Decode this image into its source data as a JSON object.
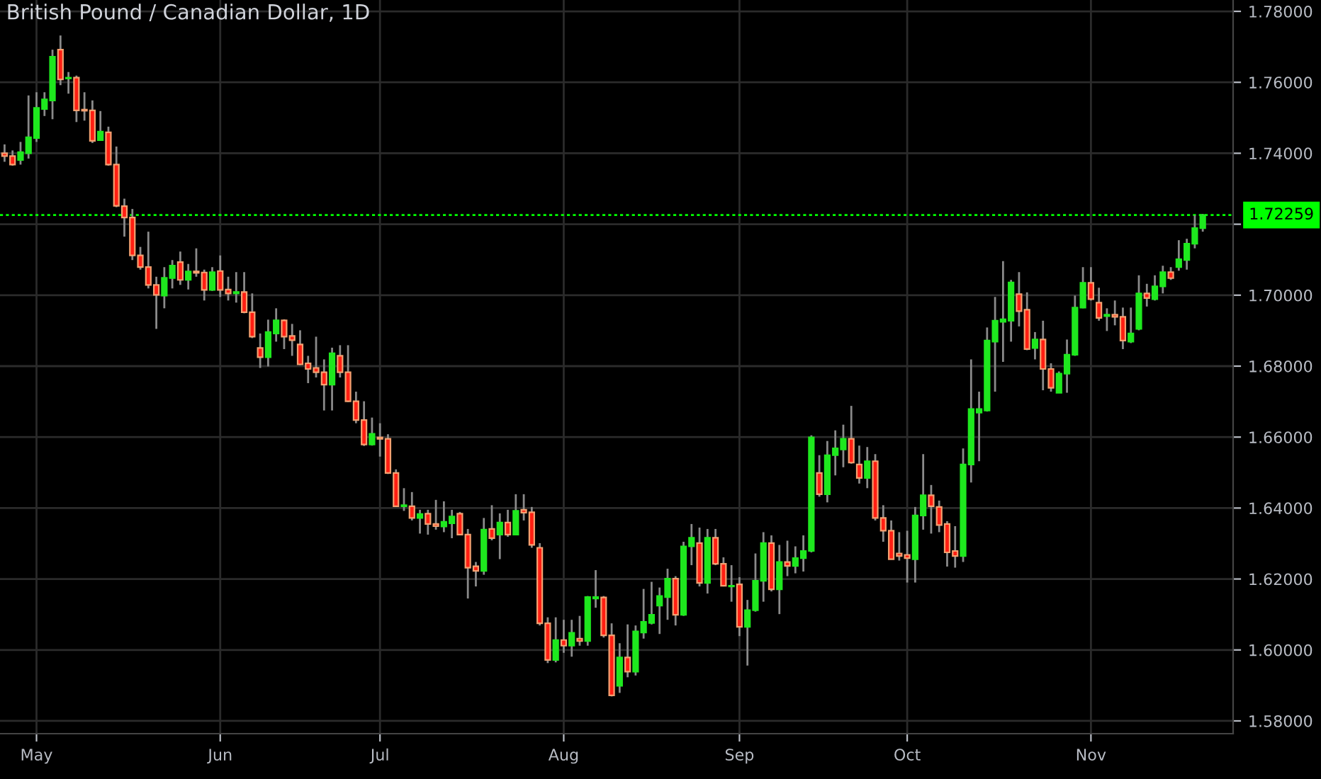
{
  "chart_data": {
    "type": "candlestick",
    "title": "British Pound / Canadian Dollar, 1D",
    "categories": [
      null,
      null,
      null,
      null,
      "May",
      null,
      null,
      null,
      null,
      null,
      null,
      null,
      null,
      null,
      null,
      null,
      null,
      null,
      null,
      null,
      null,
      null,
      null,
      null,
      null,
      null,
      null,
      "Jun",
      null,
      null,
      null,
      null,
      null,
      null,
      null,
      null,
      null,
      null,
      null,
      null,
      null,
      null,
      null,
      null,
      null,
      null,
      null,
      "Jul",
      null,
      null,
      null,
      null,
      null,
      null,
      null,
      null,
      null,
      null,
      null,
      null,
      null,
      null,
      null,
      null,
      null,
      null,
      null,
      null,
      null,
      null,
      "Aug",
      null,
      null,
      null,
      null,
      null,
      null,
      null,
      null,
      null,
      null,
      null,
      null,
      null,
      null,
      null,
      null,
      null,
      null,
      null,
      null,
      null,
      "Sep",
      null,
      null,
      null,
      null,
      null,
      null,
      null,
      null,
      null,
      null,
      null,
      null,
      null,
      null,
      null,
      null,
      null,
      null,
      null,
      null,
      "Oct",
      null,
      null,
      null,
      null,
      null,
      null,
      null,
      null,
      null,
      null,
      null,
      null,
      null,
      null,
      null,
      null,
      null,
      null,
      null,
      null,
      null,
      null,
      "Nov",
      null,
      null,
      null,
      null,
      null,
      null,
      null,
      null,
      null,
      null,
      null,
      null,
      null,
      null
    ],
    "ohlc": [
      [
        1.74,
        1.7425,
        1.7376,
        1.7392
      ],
      [
        1.7392,
        1.7408,
        1.7365,
        1.7368
      ],
      [
        1.7381,
        1.7432,
        1.7368,
        1.7403
      ],
      [
        1.74,
        1.7563,
        1.7385,
        1.7445
      ],
      [
        1.7443,
        1.7572,
        1.7432,
        1.7528
      ],
      [
        1.7525,
        1.7572,
        1.7505,
        1.7552
      ],
      [
        1.7549,
        1.7692,
        1.7496,
        1.7672
      ],
      [
        1.7692,
        1.7732,
        1.7592,
        1.7608
      ],
      [
        1.7611,
        1.7629,
        1.7568,
        1.7613
      ],
      [
        1.7613,
        1.7619,
        1.7488,
        1.7521
      ],
      [
        1.7523,
        1.7572,
        1.7492,
        1.752
      ],
      [
        1.7521,
        1.7549,
        1.7429,
        1.7435
      ],
      [
        1.7437,
        1.7519,
        1.7435,
        1.7461
      ],
      [
        1.7459,
        1.7475,
        1.7365,
        1.7368
      ],
      [
        1.7368,
        1.7419,
        1.7248,
        1.7252
      ],
      [
        1.7251,
        1.7272,
        1.7165,
        1.7219
      ],
      [
        1.7219,
        1.7243,
        1.7099,
        1.7112
      ],
      [
        1.7112,
        1.7136,
        1.7072,
        1.7079
      ],
      [
        1.7079,
        1.7179,
        1.7019,
        1.7029
      ],
      [
        1.7029,
        1.7052,
        1.6905,
        1.7001
      ],
      [
        1.6999,
        1.7079,
        1.6963,
        1.7049
      ],
      [
        1.7048,
        1.7099,
        1.7019,
        1.7083
      ],
      [
        1.7093,
        1.7123,
        1.7029,
        1.7043
      ],
      [
        1.7043,
        1.7088,
        1.7016,
        1.7067
      ],
      [
        1.7067,
        1.7132,
        1.7052,
        1.7063
      ],
      [
        1.7064,
        1.7072,
        1.6985,
        1.7015
      ],
      [
        1.7015,
        1.7079,
        1.7012,
        1.7065
      ],
      [
        1.7068,
        1.7112,
        1.6995,
        1.7015
      ],
      [
        1.7016,
        1.7052,
        1.6985,
        1.7005
      ],
      [
        1.7005,
        1.7065,
        1.6979,
        1.7009
      ],
      [
        1.7009,
        1.7065,
        1.6949,
        1.6952
      ],
      [
        1.6952,
        1.7005,
        1.6879,
        1.6883
      ],
      [
        1.6851,
        1.6892,
        1.6795,
        1.6825
      ],
      [
        1.6825,
        1.6931,
        1.6799,
        1.6896
      ],
      [
        1.6892,
        1.6963,
        1.6869,
        1.6929
      ],
      [
        1.6929,
        1.6932,
        1.6848,
        1.6883
      ],
      [
        1.6885,
        1.6919,
        1.6829,
        1.6873
      ],
      [
        1.6861,
        1.6901,
        1.6803,
        1.6805
      ],
      [
        1.6808,
        1.6829,
        1.6752,
        1.6792
      ],
      [
        1.6795,
        1.6883,
        1.6768,
        1.6783
      ],
      [
        1.6783,
        1.6819,
        1.6675,
        1.6748
      ],
      [
        1.6748,
        1.6852,
        1.6675,
        1.6836
      ],
      [
        1.6829,
        1.6859,
        1.6768,
        1.6783
      ],
      [
        1.6783,
        1.6859,
        1.6699,
        1.6701
      ],
      [
        1.6701,
        1.6728,
        1.6639,
        1.6648
      ],
      [
        1.6648,
        1.6701,
        1.6575,
        1.6579
      ],
      [
        1.6579,
        1.6655,
        1.6576,
        1.6609
      ],
      [
        1.6599,
        1.6639,
        1.6545,
        1.6595
      ],
      [
        1.6595,
        1.6608,
        1.6496,
        1.6499
      ],
      [
        1.6499,
        1.6509,
        1.6403,
        1.6405
      ],
      [
        1.6405,
        1.6456,
        1.6392,
        1.6408
      ],
      [
        1.6405,
        1.6445,
        1.6365,
        1.6372
      ],
      [
        1.6372,
        1.6395,
        1.6328,
        1.6383
      ],
      [
        1.6384,
        1.6395,
        1.6325,
        1.6355
      ],
      [
        1.6355,
        1.6423,
        1.6339,
        1.6349
      ],
      [
        1.6348,
        1.6419,
        1.6332,
        1.6361
      ],
      [
        1.6357,
        1.6395,
        1.6315,
        1.6376
      ],
      [
        1.6384,
        1.6389,
        1.6323,
        1.6325
      ],
      [
        1.6325,
        1.6341,
        1.6145,
        1.6232
      ],
      [
        1.6236,
        1.6248,
        1.6179,
        1.6223
      ],
      [
        1.6223,
        1.6372,
        1.6212,
        1.6339
      ],
      [
        1.6341,
        1.6408,
        1.6309,
        1.6315
      ],
      [
        1.6325,
        1.6385,
        1.6256,
        1.6359
      ],
      [
        1.6359,
        1.6395,
        1.6319,
        1.6325
      ],
      [
        1.6325,
        1.6439,
        1.6323,
        1.6392
      ],
      [
        1.6395,
        1.6439,
        1.6365,
        1.6387
      ],
      [
        1.6388,
        1.6403,
        1.6288,
        1.6296
      ],
      [
        1.6288,
        1.6301,
        1.6069,
        1.6075
      ],
      [
        1.6075,
        1.6092,
        1.5963,
        1.5972
      ],
      [
        1.5972,
        1.6092,
        1.5965,
        1.6028
      ],
      [
        1.6028,
        1.6085,
        1.5992,
        1.6012
      ],
      [
        1.6012,
        1.6085,
        1.5981,
        1.6048
      ],
      [
        1.6032,
        1.6096,
        1.6012,
        1.6025
      ],
      [
        1.6025,
        1.6152,
        1.6012,
        1.6149
      ],
      [
        1.6145,
        1.6225,
        1.6119,
        1.6149
      ],
      [
        1.6148,
        1.6152,
        1.6035,
        1.6041
      ],
      [
        1.6041,
        1.6075,
        1.5869,
        1.5872
      ],
      [
        1.5899,
        1.6019,
        1.5879,
        1.5979
      ],
      [
        1.5979,
        1.6072,
        1.5923,
        1.5939
      ],
      [
        1.5939,
        1.6069,
        1.5928,
        1.6052
      ],
      [
        1.6049,
        1.6172,
        1.6032,
        1.6079
      ],
      [
        1.6076,
        1.6192,
        1.6072,
        1.6099
      ],
      [
        1.6125,
        1.6176,
        1.6045,
        1.6152
      ],
      [
        1.6149,
        1.6229,
        1.6085,
        1.6201
      ],
      [
        1.6201,
        1.6208,
        1.6069,
        1.6099
      ],
      [
        1.6099,
        1.6305,
        1.6096,
        1.6292
      ],
      [
        1.6292,
        1.6355,
        1.6239,
        1.6316
      ],
      [
        1.6301,
        1.6345,
        1.6179,
        1.6189
      ],
      [
        1.6189,
        1.6341,
        1.6159,
        1.6316
      ],
      [
        1.6316,
        1.6341,
        1.6239,
        1.6243
      ],
      [
        1.6243,
        1.6261,
        1.6179,
        1.6181
      ],
      [
        1.6179,
        1.6239,
        1.6136,
        1.6181
      ],
      [
        1.6185,
        1.6205,
        1.6039,
        1.6065
      ],
      [
        1.6065,
        1.6141,
        1.5956,
        1.6112
      ],
      [
        1.6112,
        1.6272,
        1.6108,
        1.6195
      ],
      [
        1.6195,
        1.6332,
        1.6136,
        1.6301
      ],
      [
        1.6301,
        1.6323,
        1.6165,
        1.6171
      ],
      [
        1.6171,
        1.6296,
        1.6101,
        1.6248
      ],
      [
        1.6248,
        1.6308,
        1.6208,
        1.6237
      ],
      [
        1.6237,
        1.6292,
        1.6216,
        1.6259
      ],
      [
        1.6259,
        1.6323,
        1.6221,
        1.6279
      ],
      [
        1.6279,
        1.6605,
        1.6275,
        1.6599
      ],
      [
        1.6499,
        1.6549,
        1.6432,
        1.6439
      ],
      [
        1.6439,
        1.6589,
        1.6416,
        1.6549
      ],
      [
        1.6549,
        1.6619,
        1.6492,
        1.6568
      ],
      [
        1.6565,
        1.6635,
        1.6515,
        1.6595
      ],
      [
        1.6595,
        1.6688,
        1.6525,
        1.6528
      ],
      [
        1.6523,
        1.6576,
        1.6469,
        1.6485
      ],
      [
        1.6485,
        1.6572,
        1.6456,
        1.6532
      ],
      [
        1.6532,
        1.6552,
        1.6365,
        1.6372
      ],
      [
        1.6372,
        1.6408,
        1.6305,
        1.6336
      ],
      [
        1.6336,
        1.6365,
        1.6255,
        1.6256
      ],
      [
        1.6272,
        1.6332,
        1.6252,
        1.6265
      ],
      [
        1.6268,
        1.6336,
        1.619,
        1.6259
      ],
      [
        1.6256,
        1.6403,
        1.619,
        1.6379
      ],
      [
        1.6379,
        1.6552,
        1.6339,
        1.6436
      ],
      [
        1.6436,
        1.6465,
        1.6328,
        1.6405
      ],
      [
        1.6403,
        1.6421,
        1.6332,
        1.6352
      ],
      [
        1.6355,
        1.6363,
        1.6235,
        1.6275
      ],
      [
        1.6279,
        1.6349,
        1.6232,
        1.6265
      ],
      [
        1.6265,
        1.6568,
        1.6248,
        1.6523
      ],
      [
        1.6523,
        1.6819,
        1.6472,
        1.6679
      ],
      [
        1.6669,
        1.6728,
        1.6532,
        1.6679
      ],
      [
        1.6675,
        1.6909,
        1.6672,
        1.6872
      ],
      [
        1.6869,
        1.6995,
        1.6728,
        1.6928
      ],
      [
        1.6925,
        1.7096,
        1.6812,
        1.6932
      ],
      [
        1.6928,
        1.7043,
        1.6869,
        1.7036
      ],
      [
        1.7003,
        1.7065,
        1.6912,
        1.6955
      ],
      [
        1.6959,
        1.7008,
        1.6845,
        1.6848
      ],
      [
        1.6851,
        1.6896,
        1.6819,
        1.6875
      ],
      [
        1.6875,
        1.6928,
        1.6732,
        1.6792
      ],
      [
        1.6792,
        1.6808,
        1.6728,
        1.6739
      ],
      [
        1.6725,
        1.6785,
        1.6725,
        1.6779
      ],
      [
        1.6779,
        1.6875,
        1.6725,
        1.6832
      ],
      [
        1.6832,
        1.6999,
        1.6829,
        1.6965
      ],
      [
        1.6965,
        1.7079,
        1.6963,
        1.7035
      ],
      [
        1.7035,
        1.7079,
        1.6985,
        1.6989
      ],
      [
        1.6979,
        1.7021,
        1.6928,
        1.6936
      ],
      [
        1.6941,
        1.6963,
        1.6899,
        1.6945
      ],
      [
        1.6945,
        1.6985,
        1.6915,
        1.6939
      ],
      [
        1.6939,
        1.6965,
        1.6848,
        1.6872
      ],
      [
        1.6869,
        1.6965,
        1.6865,
        1.6892
      ],
      [
        1.6905,
        1.7056,
        1.6901,
        1.7005
      ],
      [
        1.7005,
        1.7032,
        1.6968,
        1.6992
      ],
      [
        1.6989,
        1.7056,
        1.6985,
        1.7025
      ],
      [
        1.7025,
        1.7083,
        1.7005,
        1.7065
      ],
      [
        1.7065,
        1.7079,
        1.7043,
        1.7048
      ],
      [
        1.7079,
        1.7155,
        1.7069,
        1.7101
      ],
      [
        1.7099,
        1.7159,
        1.7072,
        1.7145
      ],
      [
        1.7145,
        1.7225,
        1.7132,
        1.7189
      ],
      [
        1.7189,
        1.7229,
        1.7179,
        1.7226
      ]
    ],
    "ylim": [
      1.5764,
      1.7832
    ],
    "yticks": [
      {
        "value": 1.58,
        "label": "1.58000"
      },
      {
        "value": 1.6,
        "label": "1.60000"
      },
      {
        "value": 1.62,
        "label": "1.62000"
      },
      {
        "value": 1.64,
        "label": "1.64000"
      },
      {
        "value": 1.66,
        "label": "1.66000"
      },
      {
        "value": 1.68,
        "label": "1.68000"
      },
      {
        "value": 1.7,
        "label": "1.70000"
      },
      {
        "value": 1.72,
        "label": null
      },
      {
        "value": 1.74,
        "label": "1.74000"
      },
      {
        "value": 1.76,
        "label": "1.76000"
      },
      {
        "value": 1.78,
        "label": "1.78000"
      }
    ],
    "ref_lines": [
      {
        "axis": "y",
        "value": 1.72259,
        "label": "1.72259",
        "color": "#00ff00",
        "line_style": "dotted"
      }
    ],
    "grid": true,
    "legend": false
  }
}
